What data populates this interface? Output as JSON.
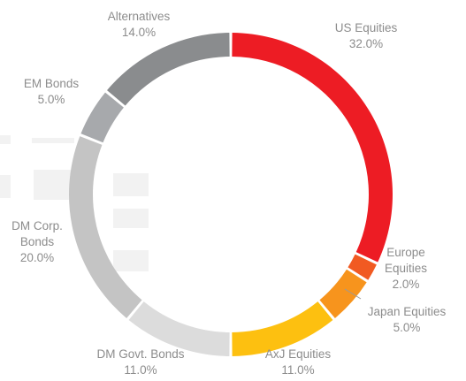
{
  "chart_data": {
    "type": "pie",
    "style": "donut",
    "slices": [
      {
        "name": "US Equities",
        "value_label": "32.0%",
        "value": 32.0,
        "color": "#ed1c24"
      },
      {
        "name": "Europe Equities",
        "value_label": "2.0%",
        "value": 2.0,
        "color": "#f15a22"
      },
      {
        "name": "Japan Equities",
        "value_label": "5.0%",
        "value": 5.0,
        "color": "#f7941d"
      },
      {
        "name": "AxJ Equities",
        "value_label": "11.0%",
        "value": 11.0,
        "color": "#fdc010"
      },
      {
        "name": "DM Govt. Bonds",
        "value_label": "11.0%",
        "value": 11.0,
        "color": "#dcdcdc"
      },
      {
        "name": "DM Corp. Bonds",
        "value_label": "20.0%",
        "value": 20.0,
        "color": "#c4c4c4"
      },
      {
        "name": "EM Bonds",
        "value_label": "5.0%",
        "value": 5.0,
        "color": "#a7a9ac"
      },
      {
        "name": "Alternatives",
        "value_label": "14.0%",
        "value": 14.0,
        "color": "#8a8c8e"
      }
    ]
  }
}
